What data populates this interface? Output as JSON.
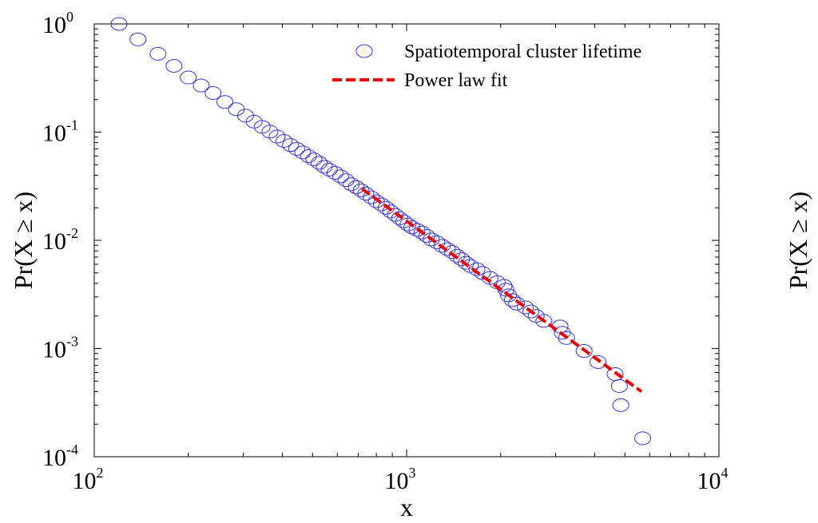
{
  "chart_data": {
    "type": "scatter",
    "xlabel": "x",
    "ylabel": "Pr(X ≥ x)",
    "second_ylabel": "Pr(X ≥ x)",
    "x_scale": "log",
    "y_scale": "log",
    "xlim": [
      100,
      10000
    ],
    "ylim": [
      0.0001,
      1
    ],
    "x_ticks": [
      {
        "base": "10",
        "exp": "2",
        "value": 100
      },
      {
        "base": "10",
        "exp": "3",
        "value": 1000
      },
      {
        "base": "10",
        "exp": "4",
        "value": 10000
      }
    ],
    "y_ticks": [
      {
        "base": "10",
        "exp": "0",
        "value": 1
      },
      {
        "base": "10",
        "exp": "-1",
        "value": 0.1
      },
      {
        "base": "10",
        "exp": "-2",
        "value": 0.01
      },
      {
        "base": "10",
        "exp": "-3",
        "value": 0.001
      },
      {
        "base": "10",
        "exp": "-4",
        "value": 0.0001
      }
    ],
    "grid": false,
    "legend_position": "top-right",
    "series": [
      {
        "name": "Spatiotemporal cluster lifetime",
        "kind": "scatter",
        "marker": "open-circle",
        "color": "#3333dd",
        "points": [
          [
            120,
            1.0
          ],
          [
            138,
            0.72
          ],
          [
            160,
            0.53
          ],
          [
            180,
            0.41
          ],
          [
            200,
            0.32
          ],
          [
            220,
            0.27
          ],
          [
            240,
            0.23
          ],
          [
            262,
            0.19
          ],
          [
            285,
            0.163
          ],
          [
            305,
            0.142
          ],
          [
            325,
            0.125
          ],
          [
            345,
            0.112
          ],
          [
            365,
            0.101
          ],
          [
            385,
            0.091
          ],
          [
            405,
            0.083
          ],
          [
            425,
            0.076
          ],
          [
            445,
            0.07
          ],
          [
            465,
            0.065
          ],
          [
            485,
            0.06
          ],
          [
            505,
            0.056
          ],
          [
            525,
            0.052
          ],
          [
            545,
            0.048
          ],
          [
            565,
            0.045
          ],
          [
            590,
            0.042
          ],
          [
            615,
            0.039
          ],
          [
            640,
            0.036
          ],
          [
            665,
            0.033
          ],
          [
            690,
            0.031
          ],
          [
            715,
            0.029
          ],
          [
            740,
            0.027
          ],
          [
            770,
            0.025
          ],
          [
            800,
            0.023
          ],
          [
            830,
            0.0215
          ],
          [
            860,
            0.02
          ],
          [
            890,
            0.0185
          ],
          [
            920,
            0.0172
          ],
          [
            950,
            0.016
          ],
          [
            980,
            0.015
          ],
          [
            1010,
            0.014
          ],
          [
            1040,
            0.0132
          ],
          [
            1080,
            0.0125
          ],
          [
            1120,
            0.0118
          ],
          [
            1160,
            0.011
          ],
          [
            1200,
            0.0102
          ],
          [
            1250,
            0.0096
          ],
          [
            1300,
            0.0089
          ],
          [
            1350,
            0.0083
          ],
          [
            1400,
            0.0078
          ],
          [
            1450,
            0.0072
          ],
          [
            1500,
            0.0067
          ],
          [
            1550,
            0.0062
          ],
          [
            1600,
            0.0058
          ],
          [
            1680,
            0.0054
          ],
          [
            1750,
            0.005
          ],
          [
            1850,
            0.0045
          ],
          [
            1950,
            0.0041
          ],
          [
            2050,
            0.0038
          ],
          [
            2080,
            0.0035
          ],
          [
            2120,
            0.0031
          ],
          [
            2180,
            0.0028
          ],
          [
            2250,
            0.0026
          ],
          [
            2400,
            0.0024
          ],
          [
            2500,
            0.0022
          ],
          [
            2600,
            0.002
          ],
          [
            2750,
            0.0018
          ],
          [
            3100,
            0.0016
          ],
          [
            3150,
            0.0014
          ],
          [
            3250,
            0.00125
          ],
          [
            3700,
            0.00095
          ],
          [
            4100,
            0.00075
          ],
          [
            4650,
            0.00058
          ],
          [
            4800,
            0.00045
          ],
          [
            4850,
            0.0003
          ],
          [
            5700,
            0.000148
          ]
        ]
      },
      {
        "name": "Power law fit",
        "kind": "line",
        "style": "dashed",
        "color": "#ee0000",
        "points": [
          [
            720,
            0.03
          ],
          [
            5650,
            0.0004
          ]
        ]
      }
    ]
  }
}
